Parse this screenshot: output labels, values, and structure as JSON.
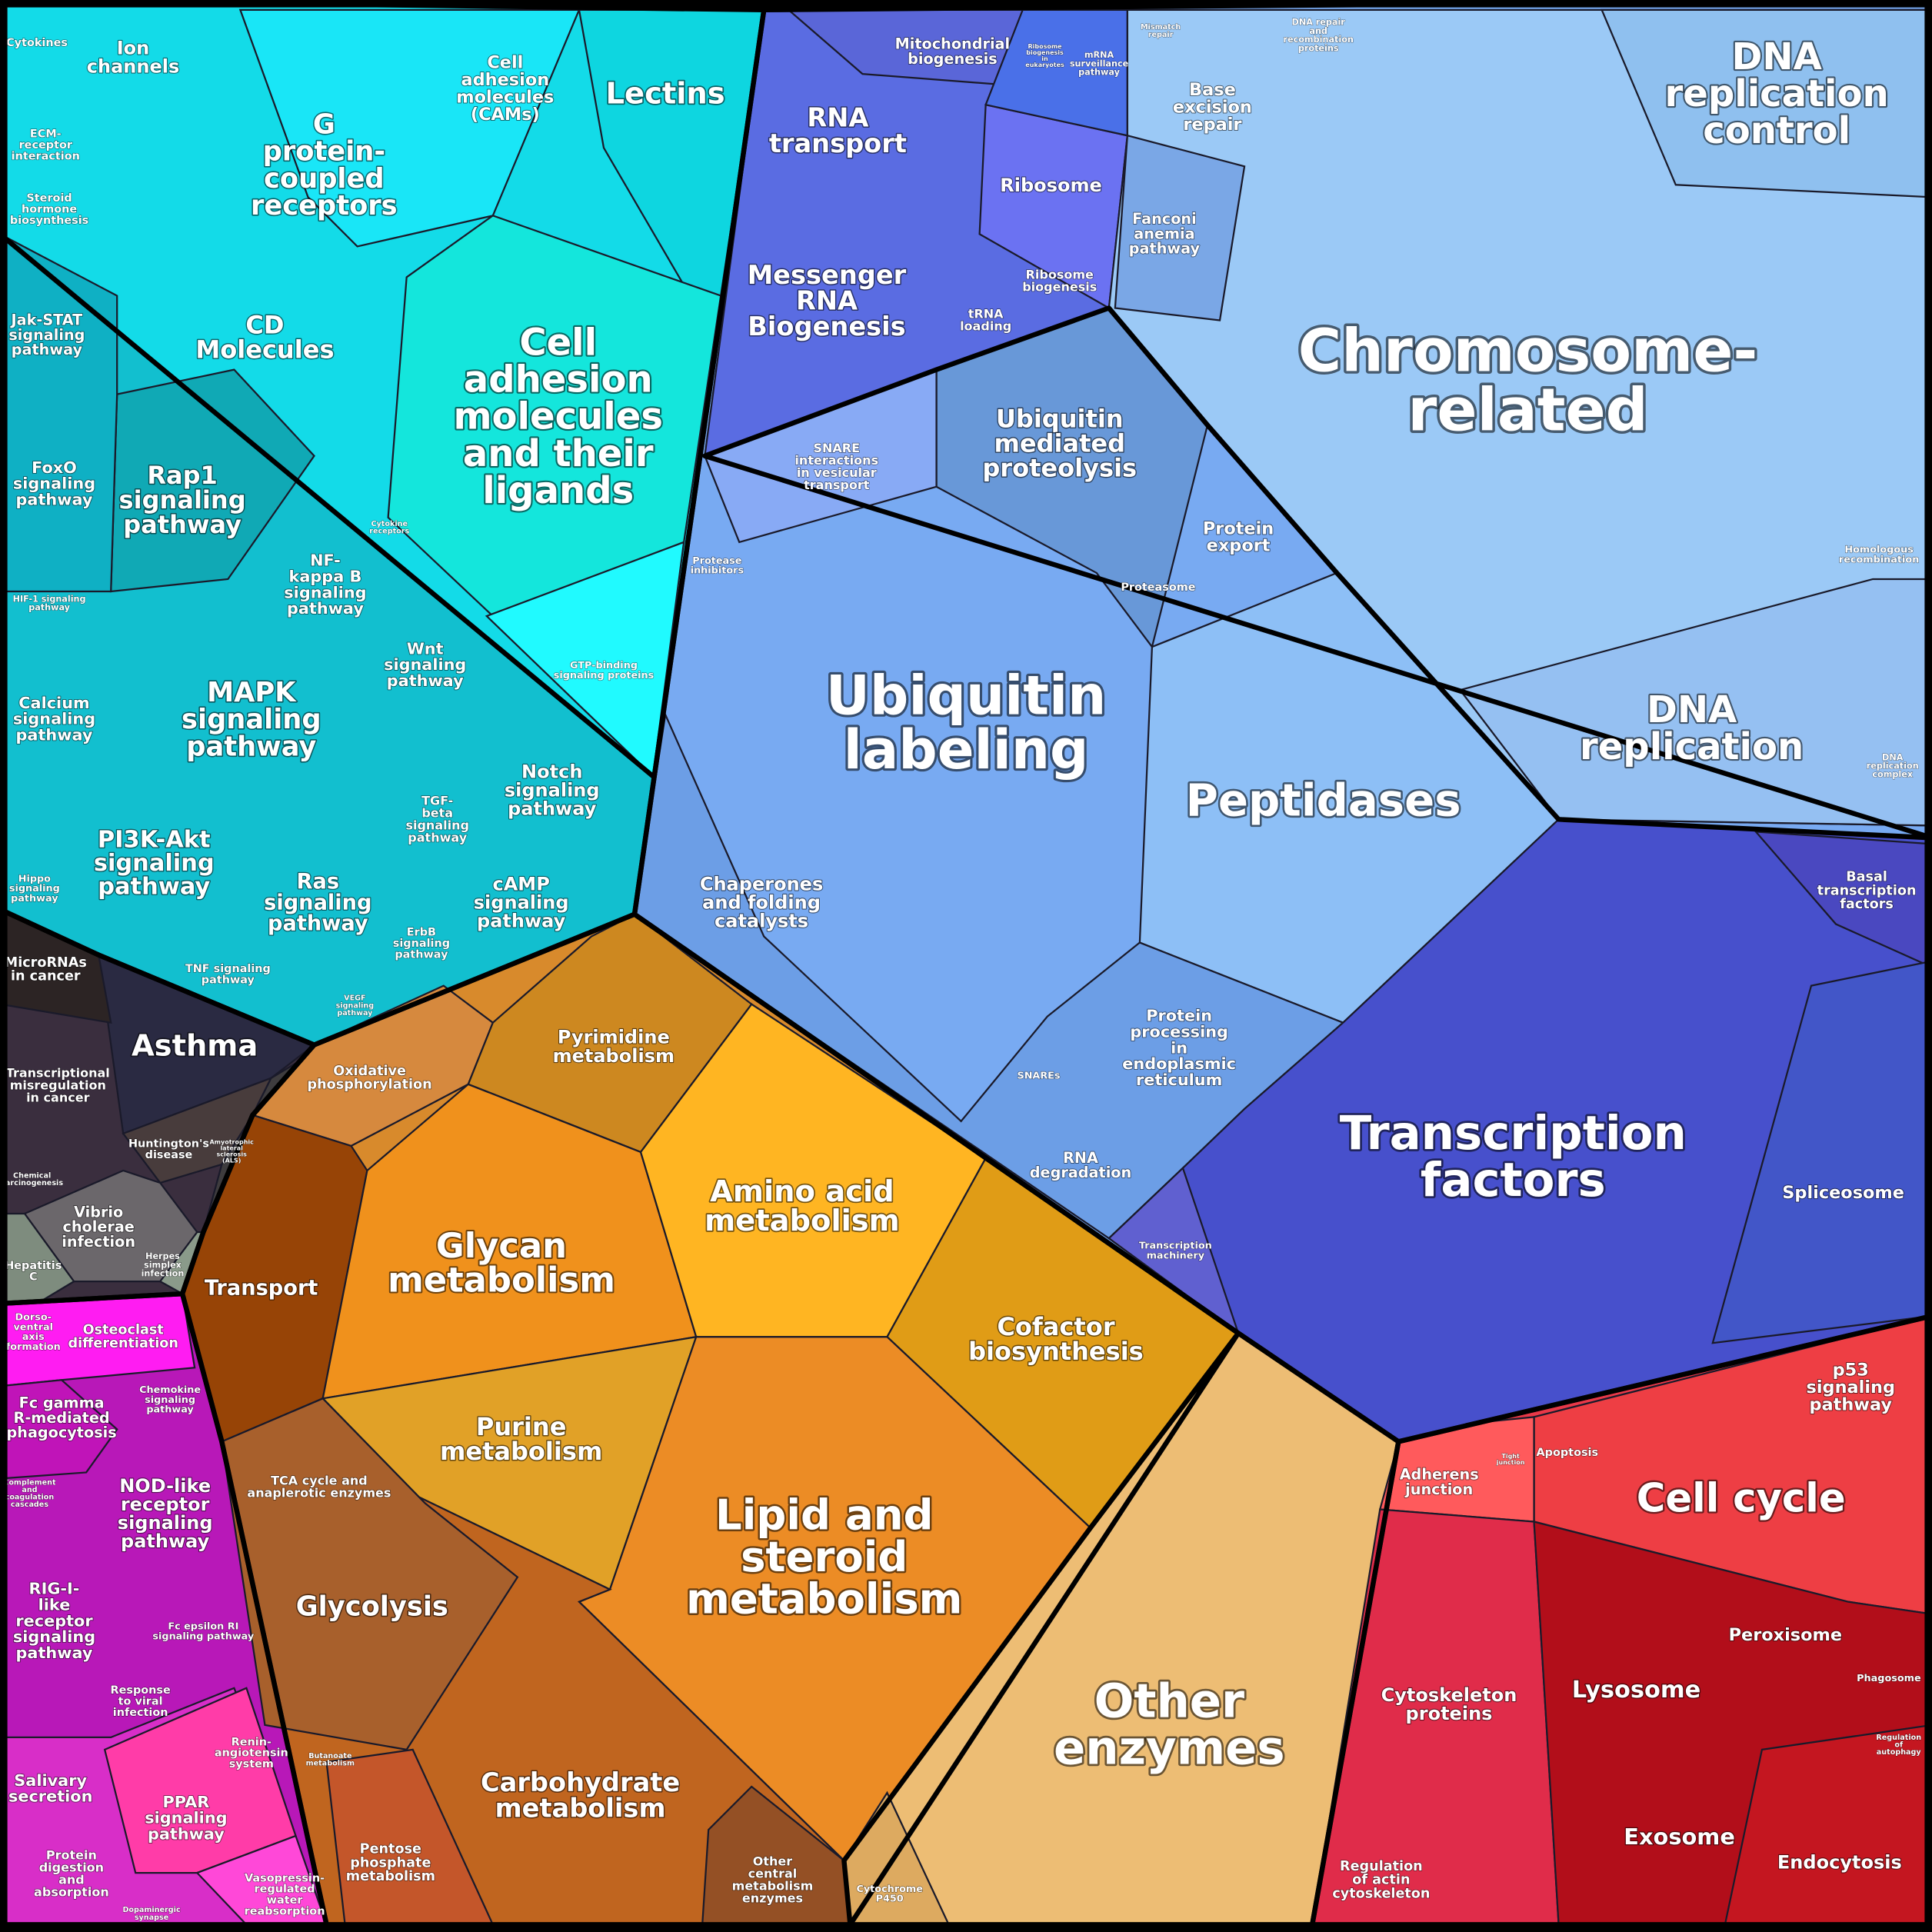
{
  "labels": [
    [
      "Cytokines"
    ],
    [
      "Ion",
      "channels"
    ],
    [
      "Cell",
      "adhesion",
      "molecules",
      "(CAMs)"
    ],
    [
      "Lectins"
    ],
    [
      "G",
      "protein-",
      "coupled",
      "receptors"
    ],
    [
      "ECM-",
      "receptor",
      "interaction"
    ],
    [
      "Steroid",
      "hormone",
      "biosynthesis"
    ],
    [
      "Jak-STAT",
      "signaling",
      "pathway"
    ],
    [
      "CD",
      "Molecules"
    ],
    [
      "Cell",
      "adhesion",
      "molecules",
      "and their",
      "ligands"
    ],
    [
      "FoxO",
      "signaling",
      "pathway"
    ],
    [
      "Rap1",
      "signaling",
      "pathway"
    ],
    [
      "Cytokine",
      "receptors"
    ],
    [
      "NF-",
      "kappa B",
      "signaling",
      "pathway"
    ],
    [
      "HIF-1 signaling",
      "pathway"
    ],
    [
      "Wnt",
      "signaling",
      "pathway"
    ],
    [
      "GTP-binding",
      "signaling proteins"
    ],
    [
      "Calcium",
      "signaling",
      "pathway"
    ],
    [
      "MAPK",
      "signaling",
      "pathway"
    ],
    [
      "Notch",
      "signaling",
      "pathway"
    ],
    [
      "TGF-",
      "beta",
      "signaling",
      "pathway"
    ],
    [
      "PI3K-Akt",
      "signaling",
      "pathway"
    ],
    [
      "Hippo",
      "signaling",
      "pathway"
    ],
    [
      "Ras",
      "signaling",
      "pathway"
    ],
    [
      "cAMP",
      "signaling",
      "pathway"
    ],
    [
      "ErbB",
      "signaling",
      "pathway"
    ],
    [
      "TNF signaling",
      "pathway"
    ],
    [
      "VEGF",
      "signaling",
      "pathway"
    ],
    [
      "MicroRNAs",
      "in cancer"
    ],
    [
      "Asthma"
    ],
    [
      "Transcriptional",
      "misregulation",
      "in cancer"
    ],
    [
      "Huntington's",
      "disease"
    ],
    [
      "Amyotrophic",
      "lateral",
      "sclerosis",
      "(ALS)"
    ],
    [
      "Chemical",
      "carcinogenesis"
    ],
    [
      "Vibrio",
      "cholerae",
      "infection"
    ],
    [
      "Herpes",
      "simplex",
      "infection"
    ],
    [
      "Hepatitis",
      "C"
    ],
    [
      "Dorso-",
      "ventral",
      "axis",
      "formation"
    ],
    [
      "Osteoclast",
      "differentiation"
    ],
    [
      "Fc gamma",
      "R-mediated",
      "phagocytosis"
    ],
    [
      "Chemokine",
      "signaling",
      "pathway"
    ],
    [
      "Complement",
      "and",
      "coagulation",
      "cascades"
    ],
    [
      "NOD-like",
      "receptor",
      "signaling",
      "pathway"
    ],
    [
      "RIG-I-",
      "like",
      "receptor",
      "signaling",
      "pathway"
    ],
    [
      "Fc epsilon RI",
      "signaling pathway"
    ],
    [
      "Response",
      "to viral",
      "infection"
    ],
    [
      "Renin-",
      "angiotensin",
      "system"
    ],
    [
      "Salivary",
      "secretion"
    ],
    [
      "PPAR",
      "signaling",
      "pathway"
    ],
    [
      "Protein",
      "digestion",
      "and",
      "absorption"
    ],
    [
      "Vasopressin-",
      "regulated",
      "water",
      "reabsorption"
    ],
    [
      "Dopaminergic",
      "synapse"
    ],
    [
      "Oxidative",
      "phosphorylation"
    ],
    [
      "Pyrimidine",
      "metabolism"
    ],
    [
      "Amino acid",
      "metabolism"
    ],
    [
      "Glycan",
      "metabolism"
    ],
    [
      "Transport"
    ],
    [
      "Cofactor",
      "biosynthesis"
    ],
    [
      "Purine",
      "metabolism"
    ],
    [
      "TCA cycle and",
      "anaplerotic enzymes"
    ],
    [
      "Lipid and",
      "steroid",
      "metabolism"
    ],
    [
      "Glycolysis"
    ],
    [
      "Butanoate",
      "metabolism"
    ],
    [
      "Carbohydrate",
      "metabolism"
    ],
    [
      "Pentose",
      "phosphate",
      "metabolism"
    ],
    [
      "Other",
      "central",
      "metabolism",
      "enzymes"
    ],
    [
      "Cytochrome",
      "P450"
    ],
    [
      "Other",
      "enzymes"
    ],
    [
      "Mitochondrial",
      "biogenesis"
    ],
    [
      "Ribosome",
      "biogenesis",
      "in",
      "eukaryotes"
    ],
    [
      "mRNA",
      "surveillance",
      "pathway"
    ],
    [
      "Mismatch",
      "repair"
    ],
    [
      "DNA repair",
      "and",
      "recombination",
      "proteins"
    ],
    [
      "DNA",
      "replication",
      "control"
    ],
    [
      "RNA",
      "transport"
    ],
    [
      "Base",
      "excision",
      "repair"
    ],
    [
      "Ribosome"
    ],
    [
      "Fanconi",
      "anemia",
      "pathway"
    ],
    [
      "Messenger",
      "RNA",
      "Biogenesis"
    ],
    [
      "tRNA",
      "loading"
    ],
    [
      "Ribosome",
      "biogenesis"
    ],
    [
      "Chromosome-",
      "related"
    ],
    [
      "Ubiquitin",
      "mediated",
      "proteolysis"
    ],
    [
      "SNARE",
      "interactions",
      "in vesicular",
      "transport"
    ],
    [
      "Protein",
      "export"
    ],
    [
      "Homologous",
      "recombination"
    ],
    [
      "Protease",
      "inhibitors"
    ],
    [
      "Proteasome"
    ],
    [
      "Ubiquitin",
      "labeling"
    ],
    [
      "DNA",
      "replication"
    ],
    [
      "DNA",
      "replication",
      "complex"
    ],
    [
      "Peptidases"
    ],
    [
      "Chaperones",
      "and folding",
      "catalysts"
    ],
    [
      "Basal",
      "transcription",
      "factors"
    ],
    [
      "Protein",
      "processing",
      "in",
      "endoplasmic",
      "reticulum"
    ],
    [
      "SNAREs"
    ],
    [
      "Transcription",
      "factors"
    ],
    [
      "RNA",
      "degradation"
    ],
    [
      "Spliceosome"
    ],
    [
      "Transcription",
      "machinery"
    ],
    [
      "p53",
      "signaling",
      "pathway"
    ],
    [
      "Adherens",
      "junction"
    ],
    [
      "Tight",
      "junction"
    ],
    [
      "Apoptosis"
    ],
    [
      "Cell cycle"
    ],
    [
      "Cytoskeleton",
      "proteins"
    ],
    [
      "Peroxisome"
    ],
    [
      "Lysosome"
    ],
    [
      "Phagosome"
    ],
    [
      "Regulation",
      "of",
      "autophagy"
    ],
    [
      "Exosome"
    ],
    [
      "Endocytosis"
    ],
    [
      "Regulation",
      "of actin",
      "cytoskeleton"
    ]
  ]
}
